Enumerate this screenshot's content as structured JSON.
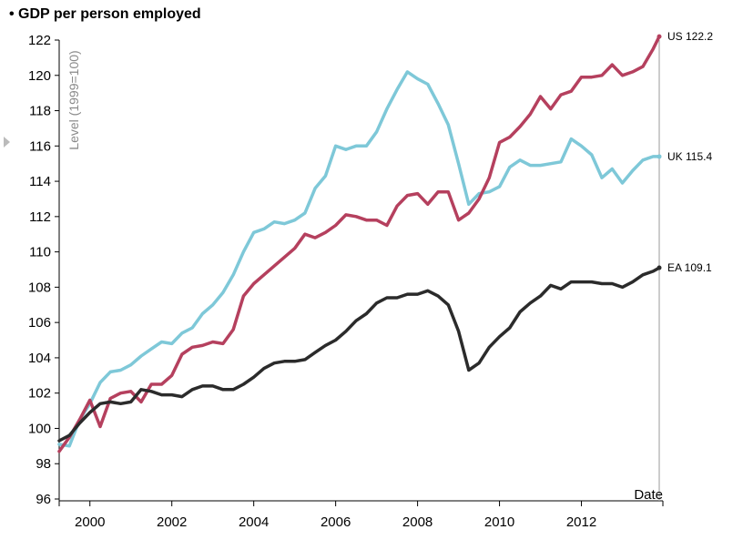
{
  "title": "• GDP per person employed",
  "chart_data": {
    "type": "line",
    "title": "GDP per person employed",
    "ylabel": "Level (1999=100)",
    "xlabel": "Date",
    "ylim": [
      96,
      122
    ],
    "xlim": [
      1999.25,
      2013.9
    ],
    "y_ticks": [
      "96",
      "98",
      "100",
      "102",
      "104",
      "106",
      "108",
      "110",
      "112",
      "114",
      "116",
      "118",
      "120",
      "122"
    ],
    "x_ticks": [
      "2000",
      "2002",
      "2004",
      "2006",
      "2008",
      "2010",
      "2012"
    ],
    "series": [
      {
        "name": "US",
        "end_label": "US 122.2",
        "color": "#b5405e",
        "x": [
          1999.25,
          1999.5,
          1999.75,
          2000.0,
          2000.25,
          2000.5,
          2000.75,
          2001.0,
          2001.25,
          2001.5,
          2001.75,
          2002.0,
          2002.25,
          2002.5,
          2002.75,
          2003.0,
          2003.25,
          2003.5,
          2003.75,
          2004.0,
          2004.25,
          2004.5,
          2004.75,
          2005.0,
          2005.25,
          2005.5,
          2005.75,
          2006.0,
          2006.25,
          2006.5,
          2006.75,
          2007.0,
          2007.25,
          2007.5,
          2007.75,
          2008.0,
          2008.25,
          2008.5,
          2008.75,
          2009.0,
          2009.25,
          2009.5,
          2009.75,
          2010.0,
          2010.25,
          2010.5,
          2010.75,
          2011.0,
          2011.25,
          2011.5,
          2011.75,
          2012.0,
          2012.25,
          2012.5,
          2012.75,
          2013.0,
          2013.25,
          2013.5,
          2013.75,
          2013.9
        ],
        "y": [
          98.7,
          99.5,
          100.5,
          101.6,
          100.1,
          101.7,
          102.0,
          102.1,
          101.5,
          102.5,
          102.5,
          103.0,
          104.2,
          104.6,
          104.7,
          104.9,
          104.8,
          105.6,
          107.5,
          108.2,
          108.7,
          109.2,
          109.7,
          110.2,
          111.0,
          110.8,
          111.1,
          111.5,
          112.1,
          112.0,
          111.8,
          111.8,
          111.5,
          112.6,
          113.2,
          113.3,
          112.7,
          113.4,
          113.4,
          111.8,
          112.2,
          113.0,
          114.2,
          116.2,
          116.5,
          117.1,
          117.8,
          118.8,
          118.1,
          118.9,
          119.1,
          119.9,
          119.9,
          120.0,
          120.6,
          120.0,
          120.2,
          120.5,
          121.5,
          122.2
        ]
      },
      {
        "name": "UK",
        "end_label": "UK 115.4",
        "color": "#7ec8d8",
        "x": [
          1999.25,
          1999.5,
          1999.75,
          2000.0,
          2000.25,
          2000.5,
          2000.75,
          2001.0,
          2001.25,
          2001.5,
          2001.75,
          2002.0,
          2002.25,
          2002.5,
          2002.75,
          2003.0,
          2003.25,
          2003.5,
          2003.75,
          2004.0,
          2004.25,
          2004.5,
          2004.75,
          2005.0,
          2005.25,
          2005.5,
          2005.75,
          2006.0,
          2006.25,
          2006.5,
          2006.75,
          2007.0,
          2007.25,
          2007.5,
          2007.75,
          2008.0,
          2008.25,
          2008.5,
          2008.75,
          2009.0,
          2009.25,
          2009.5,
          2009.75,
          2010.0,
          2010.25,
          2010.5,
          2010.75,
          2011.0,
          2011.25,
          2011.5,
          2011.75,
          2012.0,
          2012.25,
          2012.5,
          2012.75,
          2013.0,
          2013.25,
          2013.5,
          2013.75,
          2013.9
        ],
        "y": [
          99.1,
          99.0,
          100.5,
          101.4,
          102.6,
          103.2,
          103.3,
          103.6,
          104.1,
          104.5,
          104.9,
          104.8,
          105.4,
          105.7,
          106.5,
          107.0,
          107.7,
          108.7,
          110.0,
          111.1,
          111.3,
          111.7,
          111.6,
          111.8,
          112.2,
          113.6,
          114.3,
          116.0,
          115.8,
          116.0,
          116.0,
          116.8,
          118.1,
          119.2,
          120.2,
          119.8,
          119.5,
          118.4,
          117.2,
          115.0,
          112.7,
          113.3,
          113.4,
          113.7,
          114.8,
          115.2,
          114.9,
          114.9,
          115.0,
          115.1,
          116.4,
          116.0,
          115.5,
          114.2,
          114.7,
          113.9,
          114.6,
          115.2,
          115.4,
          115.4
        ]
      },
      {
        "name": "EA",
        "end_label": "EA 109.1",
        "color": "#2b2b2b",
        "x": [
          1999.25,
          1999.5,
          1999.75,
          2000.0,
          2000.25,
          2000.5,
          2000.75,
          2001.0,
          2001.25,
          2001.5,
          2001.75,
          2002.0,
          2002.25,
          2002.5,
          2002.75,
          2003.0,
          2003.25,
          2003.5,
          2003.75,
          2004.0,
          2004.25,
          2004.5,
          2004.75,
          2005.0,
          2005.25,
          2005.5,
          2005.75,
          2006.0,
          2006.25,
          2006.5,
          2006.75,
          2007.0,
          2007.25,
          2007.5,
          2007.75,
          2008.0,
          2008.25,
          2008.5,
          2008.75,
          2009.0,
          2009.25,
          2009.5,
          2009.75,
          2010.0,
          2010.25,
          2010.5,
          2010.75,
          2011.0,
          2011.25,
          2011.5,
          2011.75,
          2012.0,
          2012.25,
          2012.5,
          2012.75,
          2013.0,
          2013.25,
          2013.5,
          2013.75,
          2013.9
        ],
        "y": [
          99.3,
          99.6,
          100.3,
          100.9,
          101.4,
          101.5,
          101.4,
          101.5,
          102.2,
          102.1,
          101.9,
          101.9,
          101.8,
          102.2,
          102.4,
          102.4,
          102.2,
          102.2,
          102.5,
          102.9,
          103.4,
          103.7,
          103.8,
          103.8,
          103.9,
          104.3,
          104.7,
          105.0,
          105.5,
          106.1,
          106.5,
          107.1,
          107.4,
          107.4,
          107.6,
          107.6,
          107.8,
          107.5,
          107.0,
          105.5,
          103.3,
          103.7,
          104.6,
          105.2,
          105.7,
          106.6,
          107.1,
          107.5,
          108.1,
          107.9,
          108.3,
          108.3,
          108.3,
          108.2,
          108.2,
          108.0,
          108.3,
          108.7,
          108.9,
          109.1
        ]
      }
    ],
    "grid": false,
    "legend": "end-of-line labels at right"
  }
}
